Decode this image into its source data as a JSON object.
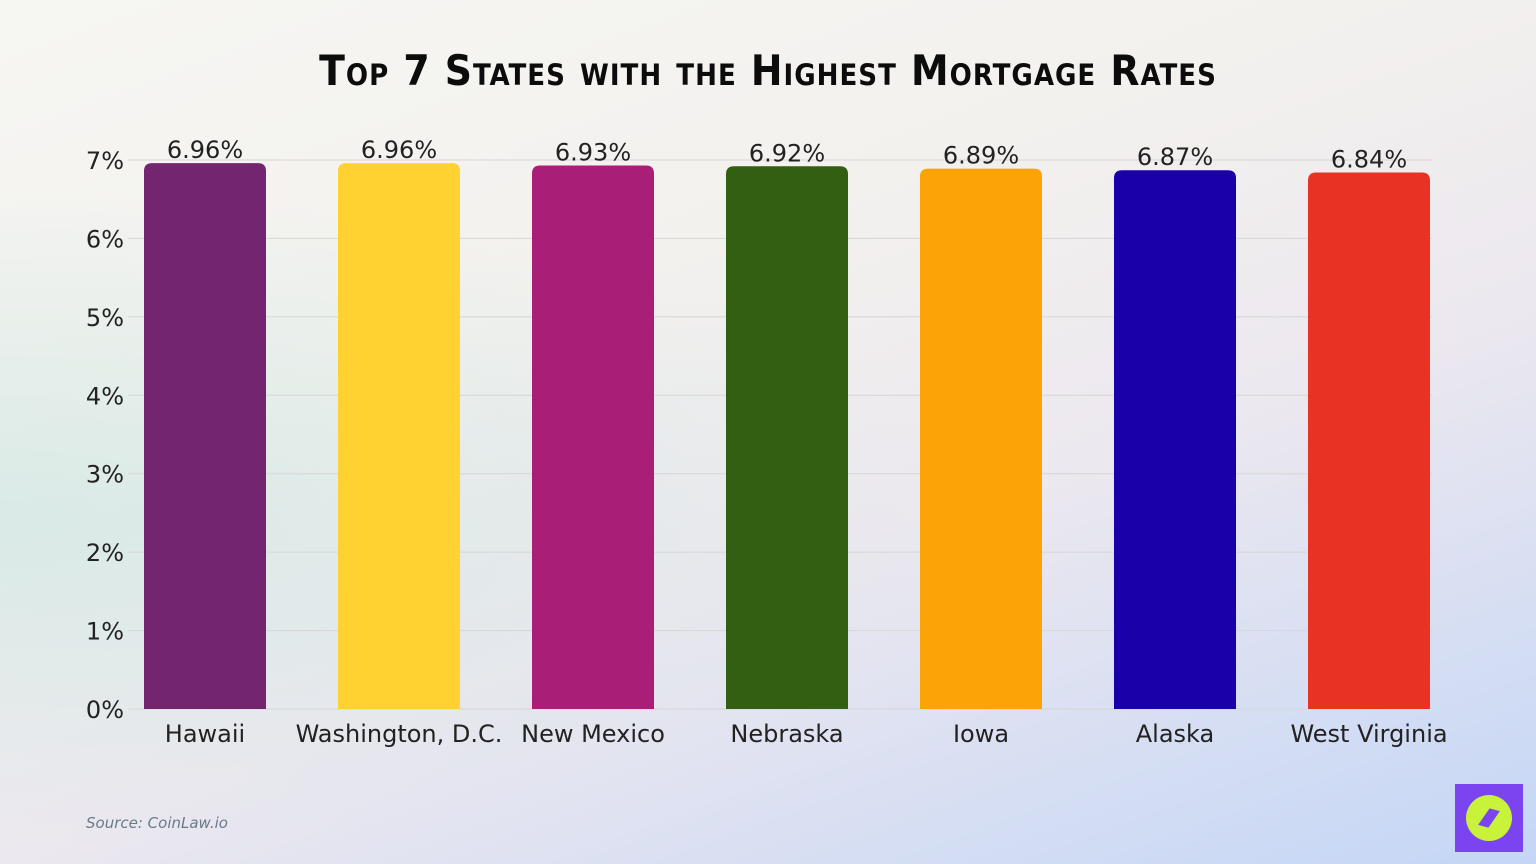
{
  "chart_data": {
    "type": "bar",
    "title": "Top 7 States with the Highest Mortgage Rates",
    "categories": [
      "Hawaii",
      "Washington, D.C.",
      "New Mexico",
      "Nebraska",
      "Iowa",
      "Alaska",
      "West Virginia"
    ],
    "values": [
      6.96,
      6.96,
      6.93,
      6.92,
      6.89,
      6.87,
      6.84
    ],
    "value_labels": [
      "6.96%",
      "6.96%",
      "6.93%",
      "6.92%",
      "6.89%",
      "6.87%",
      "6.84%"
    ],
    "colors": [
      "#73266f",
      "#ffd231",
      "#a91f78",
      "#335f12",
      "#fca308",
      "#1a00a8",
      "#e83223"
    ],
    "yticks": [
      0,
      1,
      2,
      3,
      4,
      5,
      6,
      7
    ],
    "ytick_labels": [
      "0%",
      "1%",
      "2%",
      "3%",
      "4%",
      "5%",
      "6%",
      "7%"
    ],
    "ylim": [
      0,
      7
    ],
    "xlabel": "",
    "ylabel": "",
    "grid": true,
    "legend": "none"
  },
  "source": "Source: CoinLaw.io"
}
